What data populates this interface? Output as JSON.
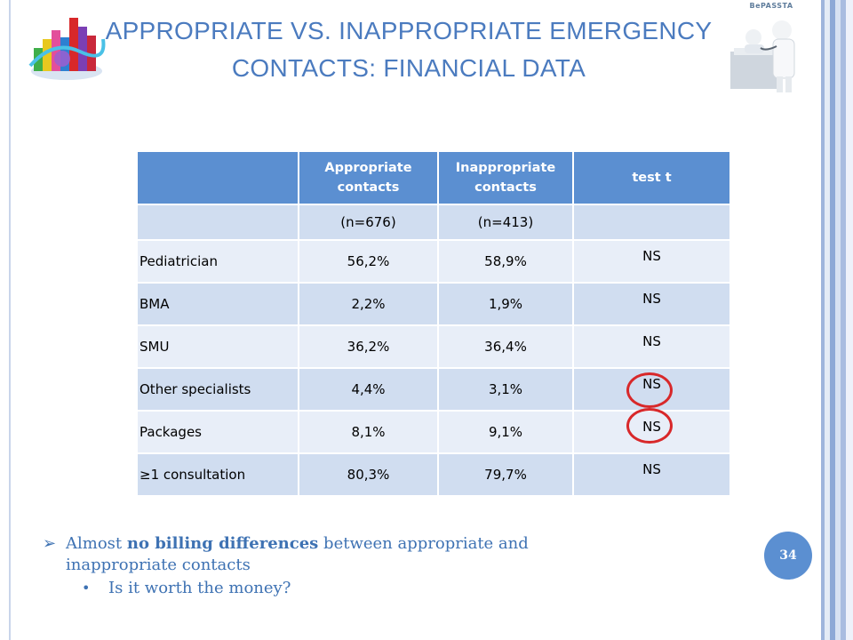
{
  "slide": {
    "title_line1": "APPROPRIATE VS. INAPPROPRIATE EMERGENCY",
    "title_line2": "CONTACTS: FINANCIAL DATA",
    "logo_text": "BePASSTA",
    "page_number": "34"
  },
  "table": {
    "headers": [
      "",
      "Appropriate contacts",
      "Inappropriate contacts",
      "test t"
    ],
    "header_lines": {
      "col2_a": "Appropriate",
      "col2_b": "contacts",
      "col3_a": "Inappropriate",
      "col3_b": "contacts",
      "col4": "test t"
    },
    "subheader": [
      "",
      "(n=676)",
      "(n=413)",
      ""
    ],
    "rows": [
      {
        "label": "Pediatrician",
        "appropriate": "56,2%",
        "inappropriate": "58,9%",
        "test": "NS"
      },
      {
        "label": "BMA",
        "appropriate": "2,2%",
        "inappropriate": "1,9%",
        "test": "NS"
      },
      {
        "label": "SMU",
        "appropriate": "36,2%",
        "inappropriate": "36,4%",
        "test": "NS"
      },
      {
        "label": "Other specialists",
        "appropriate": "4,4%",
        "inappropriate": "3,1%",
        "test": "NS"
      },
      {
        "label": "Packages",
        "appropriate": "8,1%",
        "inappropriate": "9,1%",
        "test": "NS"
      },
      {
        "label": "≥1 consultation",
        "appropriate": "80,3%",
        "inappropriate": "79,7%",
        "test": "NS"
      }
    ]
  },
  "bullets": {
    "main_prefix": "Almost ",
    "main_bold": "no billing differences",
    "main_suffix_line1": " between appropriate and",
    "main_line2": "inappropriate contacts",
    "sub": "Is it worth the money?"
  },
  "colors": {
    "accent_blue": "#5b8fd1",
    "title_blue": "#4b7bbf",
    "highlight_red": "#d8282a"
  }
}
